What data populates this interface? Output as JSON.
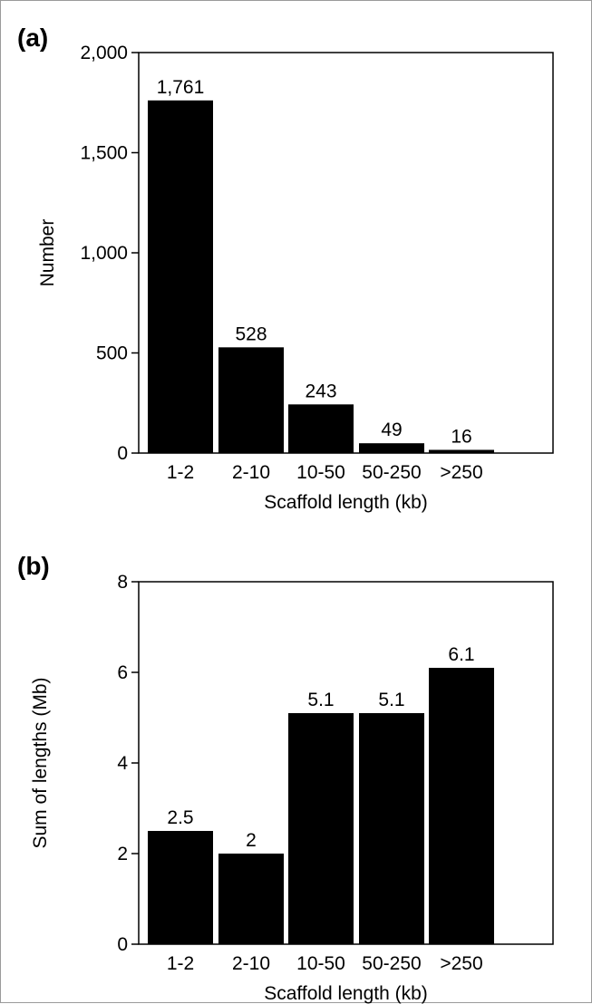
{
  "chart_data": [
    {
      "type": "bar",
      "panel_label": "(a)",
      "categories": [
        "1-2",
        "2-10",
        "10-50",
        "50-250",
        ">250"
      ],
      "values": [
        1761,
        528,
        243,
        49,
        16
      ],
      "data_labels": [
        "1,761",
        "528",
        "243",
        "49",
        "16"
      ],
      "xlabel": "Scaffold length (kb)",
      "ylabel": "Number",
      "ylim": [
        0,
        2000
      ],
      "yticks": [
        0,
        500,
        1000,
        1500,
        2000
      ],
      "ytick_labels": [
        "0",
        "500",
        "1,000",
        "1,500",
        "2,000"
      ],
      "grid": false,
      "bar_color": "#000000"
    },
    {
      "type": "bar",
      "panel_label": "(b)",
      "categories": [
        "1-2",
        "2-10",
        "10-50",
        "50-250",
        ">250"
      ],
      "values": [
        2.5,
        2,
        5.1,
        5.1,
        6.1
      ],
      "data_labels": [
        "2.5",
        "2",
        "5.1",
        "5.1",
        "6.1"
      ],
      "xlabel": "Scaffold length (kb)",
      "ylabel": "Sum of lengths (Mb)",
      "ylim": [
        0,
        8
      ],
      "yticks": [
        0,
        2,
        4,
        6,
        8
      ],
      "ytick_labels": [
        "0",
        "2",
        "4",
        "6",
        "8"
      ],
      "grid": false,
      "bar_color": "#000000"
    }
  ]
}
